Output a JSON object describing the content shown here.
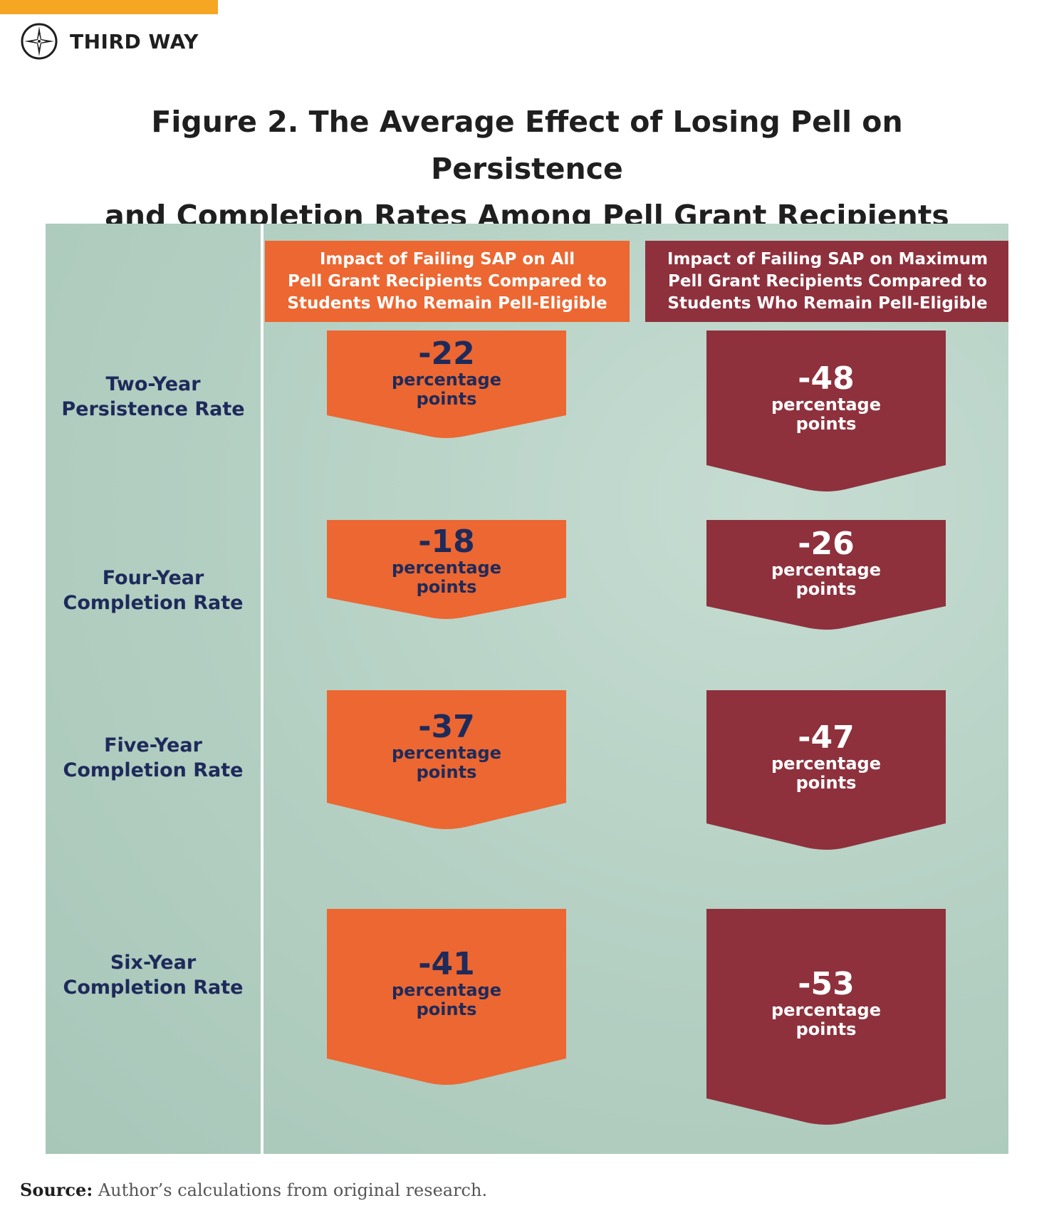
{
  "colors": {
    "accent": "#f5a623",
    "brand_text": "#1f1f1f",
    "orange": "#ec6731",
    "maroon": "#8e313d",
    "navy": "#1e2a5a",
    "panel": "#b7d2c6"
  },
  "brand": {
    "name": "THIRD WAY",
    "icon": "compass-icon"
  },
  "title": {
    "line1": "Figure 2. The Average Effect of Losing Pell on Persistence",
    "line2": "and Completion Rates Among Pell Grant Recipients"
  },
  "chart_data": {
    "type": "table",
    "title": "Figure 2. The Average Effect of Losing Pell on Persistence and Completion Rates Among Pell Grant Recipients",
    "unit": "percentage points",
    "columns": [
      {
        "name": "Impact of Failing SAP on All Pell Grant Recipients Compared to Students Who Remain Pell-Eligible",
        "lines": [
          "Impact of Failing SAP on All",
          "Pell Grant Recipients Compared to",
          "Students Who Remain Pell-Eligible"
        ]
      },
      {
        "name": "Impact of Failing SAP on Maximum Pell Grant Recipients Compared to Students Who Remain Pell-Eligible",
        "lines": [
          "Impact of Failing SAP on Maximum",
          "Pell Grant Recipients Compared to",
          "Students Who Remain Pell-Eligible"
        ]
      }
    ],
    "rows": [
      {
        "label": "Two-Year Persistence Rate",
        "lines": [
          "Two-Year",
          "Persistence Rate"
        ]
      },
      {
        "label": "Four-Year Completion Rate",
        "lines": [
          "Four-Year",
          "Completion Rate"
        ]
      },
      {
        "label": "Five-Year Completion Rate",
        "lines": [
          "Five-Year",
          "Completion Rate"
        ]
      },
      {
        "label": "Six-Year Completion Rate",
        "lines": [
          "Six-Year",
          "Completion Rate"
        ]
      }
    ],
    "series": [
      {
        "name": "All Pell Grant Recipients",
        "values": [
          -22,
          -18,
          -37,
          -41
        ]
      },
      {
        "name": "Maximum Pell Grant Recipients",
        "values": [
          -48,
          -26,
          -47,
          -53
        ]
      }
    ],
    "value_labels": [
      [
        "-22",
        "-18",
        "-37",
        "-41"
      ],
      [
        "-48",
        "-26",
        "-47",
        "-53"
      ]
    ]
  },
  "source": {
    "label": "Source:",
    "text": " Author’s calculations from original research."
  }
}
